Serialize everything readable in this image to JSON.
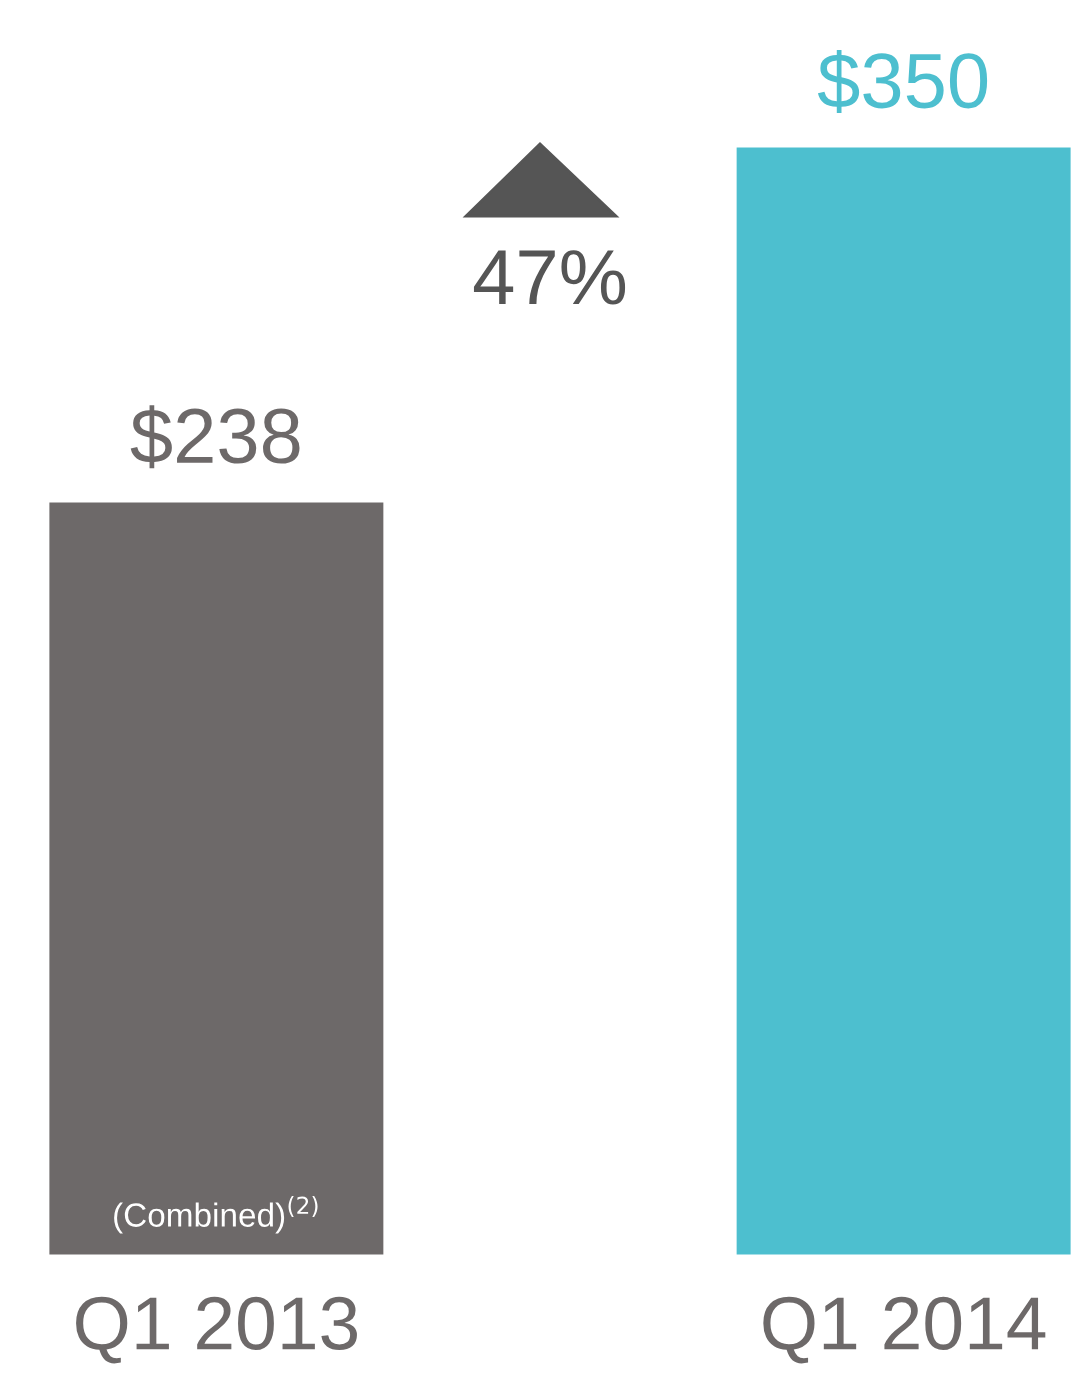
{
  "chart_data": {
    "type": "bar",
    "categories": [
      "Q1 2013",
      "Q1 2014"
    ],
    "values": [
      238,
      350
    ],
    "colors": [
      "#6d6969",
      "#4dbfcf"
    ],
    "value_labels": [
      "$238",
      "$350"
    ],
    "annotations": [
      "47%",
      "(Combined)$^{(2)}$"
    ]
  }
}
